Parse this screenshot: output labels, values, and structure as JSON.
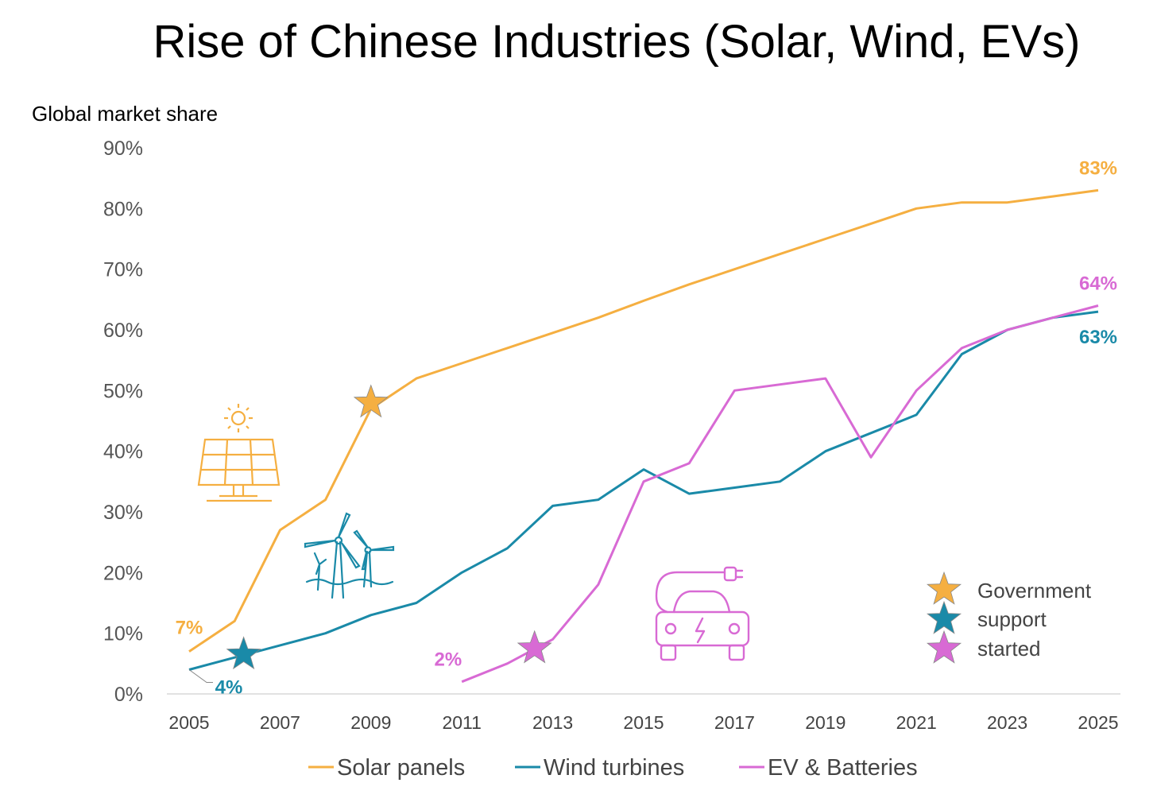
{
  "chart_data": {
    "type": "line",
    "title": "Rise of Chinese Industries (Solar, Wind, EVs)",
    "ylabel": "Global market share",
    "ylim": [
      0,
      90
    ],
    "y_ticks": [
      "0%",
      "10%",
      "20%",
      "30%",
      "40%",
      "50%",
      "60%",
      "70%",
      "80%",
      "90%"
    ],
    "x_tick_labels": [
      "2005",
      "2007",
      "2009",
      "2011",
      "2013",
      "2015",
      "2017",
      "2019",
      "2021",
      "2023",
      "2025"
    ],
    "xlim": [
      2005,
      2025
    ],
    "grid": false,
    "colors": {
      "solar": "#F5AF41",
      "wind": "#1A8AA8",
      "ev": "#D86AD4",
      "axis": "#D9D9D9"
    },
    "series": [
      {
        "name": "Solar panels",
        "key": "solar",
        "x": [
          2005,
          2006,
          2007,
          2008,
          2009,
          2010,
          2011,
          2012,
          2013,
          2014,
          2015,
          2016,
          2017,
          2018,
          2019,
          2020,
          2021,
          2022,
          2023,
          2024,
          2025
        ],
        "y": [
          7,
          12,
          27,
          32,
          47,
          52,
          54.5,
          57,
          59.5,
          62,
          64.8,
          67.5,
          70,
          72.5,
          75,
          77.5,
          80,
          81,
          81,
          82,
          83
        ]
      },
      {
        "name": "Wind turbines",
        "key": "wind",
        "x": [
          2005,
          2006,
          2007,
          2008,
          2009,
          2010,
          2011,
          2012,
          2013,
          2014,
          2015,
          2016,
          2017,
          2018,
          2019,
          2020,
          2021,
          2022,
          2023,
          2024,
          2025
        ],
        "y": [
          4,
          6,
          8,
          10,
          13,
          15,
          20,
          24,
          31,
          32,
          37,
          33,
          34,
          35,
          40,
          43,
          46,
          56,
          60,
          62,
          63
        ]
      },
      {
        "name": "EV & Batteries",
        "key": "ev",
        "x": [
          2011,
          2012,
          2013,
          2014,
          2015,
          2016,
          2017,
          2018,
          2019,
          2020,
          2021,
          2022,
          2023,
          2024,
          2025
        ],
        "y": [
          2,
          5,
          9,
          18,
          35,
          38,
          50,
          51,
          52,
          39,
          50,
          57,
          60,
          62,
          64
        ]
      }
    ],
    "data_labels": [
      {
        "series": "solar",
        "text": "7%",
        "x": 2005,
        "y": 7,
        "pos": "above-left"
      },
      {
        "series": "wind",
        "text": "4%",
        "x": 2005,
        "y": 4,
        "pos": "below-right"
      },
      {
        "series": "ev",
        "text": "2%",
        "x": 2011,
        "y": 2,
        "pos": "above-left"
      },
      {
        "series": "solar",
        "text": "83%",
        "x": 2025,
        "y": 83,
        "pos": "above"
      },
      {
        "series": "ev",
        "text": "64%",
        "x": 2025,
        "y": 64,
        "pos": "above"
      },
      {
        "series": "wind",
        "text": "63%",
        "x": 2025,
        "y": 63,
        "pos": "below"
      }
    ],
    "star_markers": [
      {
        "series": "solar",
        "x": 2009,
        "y": 48
      },
      {
        "series": "wind",
        "x": 2006.2,
        "y": 6.5
      },
      {
        "series": "ev",
        "x": 2012.6,
        "y": 7.5
      }
    ],
    "icons": [
      {
        "name": "solar-panel-icon",
        "color": "solar"
      },
      {
        "name": "wind-turbine-icon",
        "color": "wind"
      },
      {
        "name": "electric-car-icon",
        "color": "ev"
      }
    ],
    "government_legend": [
      "Government",
      "support",
      "started"
    ],
    "legend": {
      "position": "bottom"
    }
  }
}
